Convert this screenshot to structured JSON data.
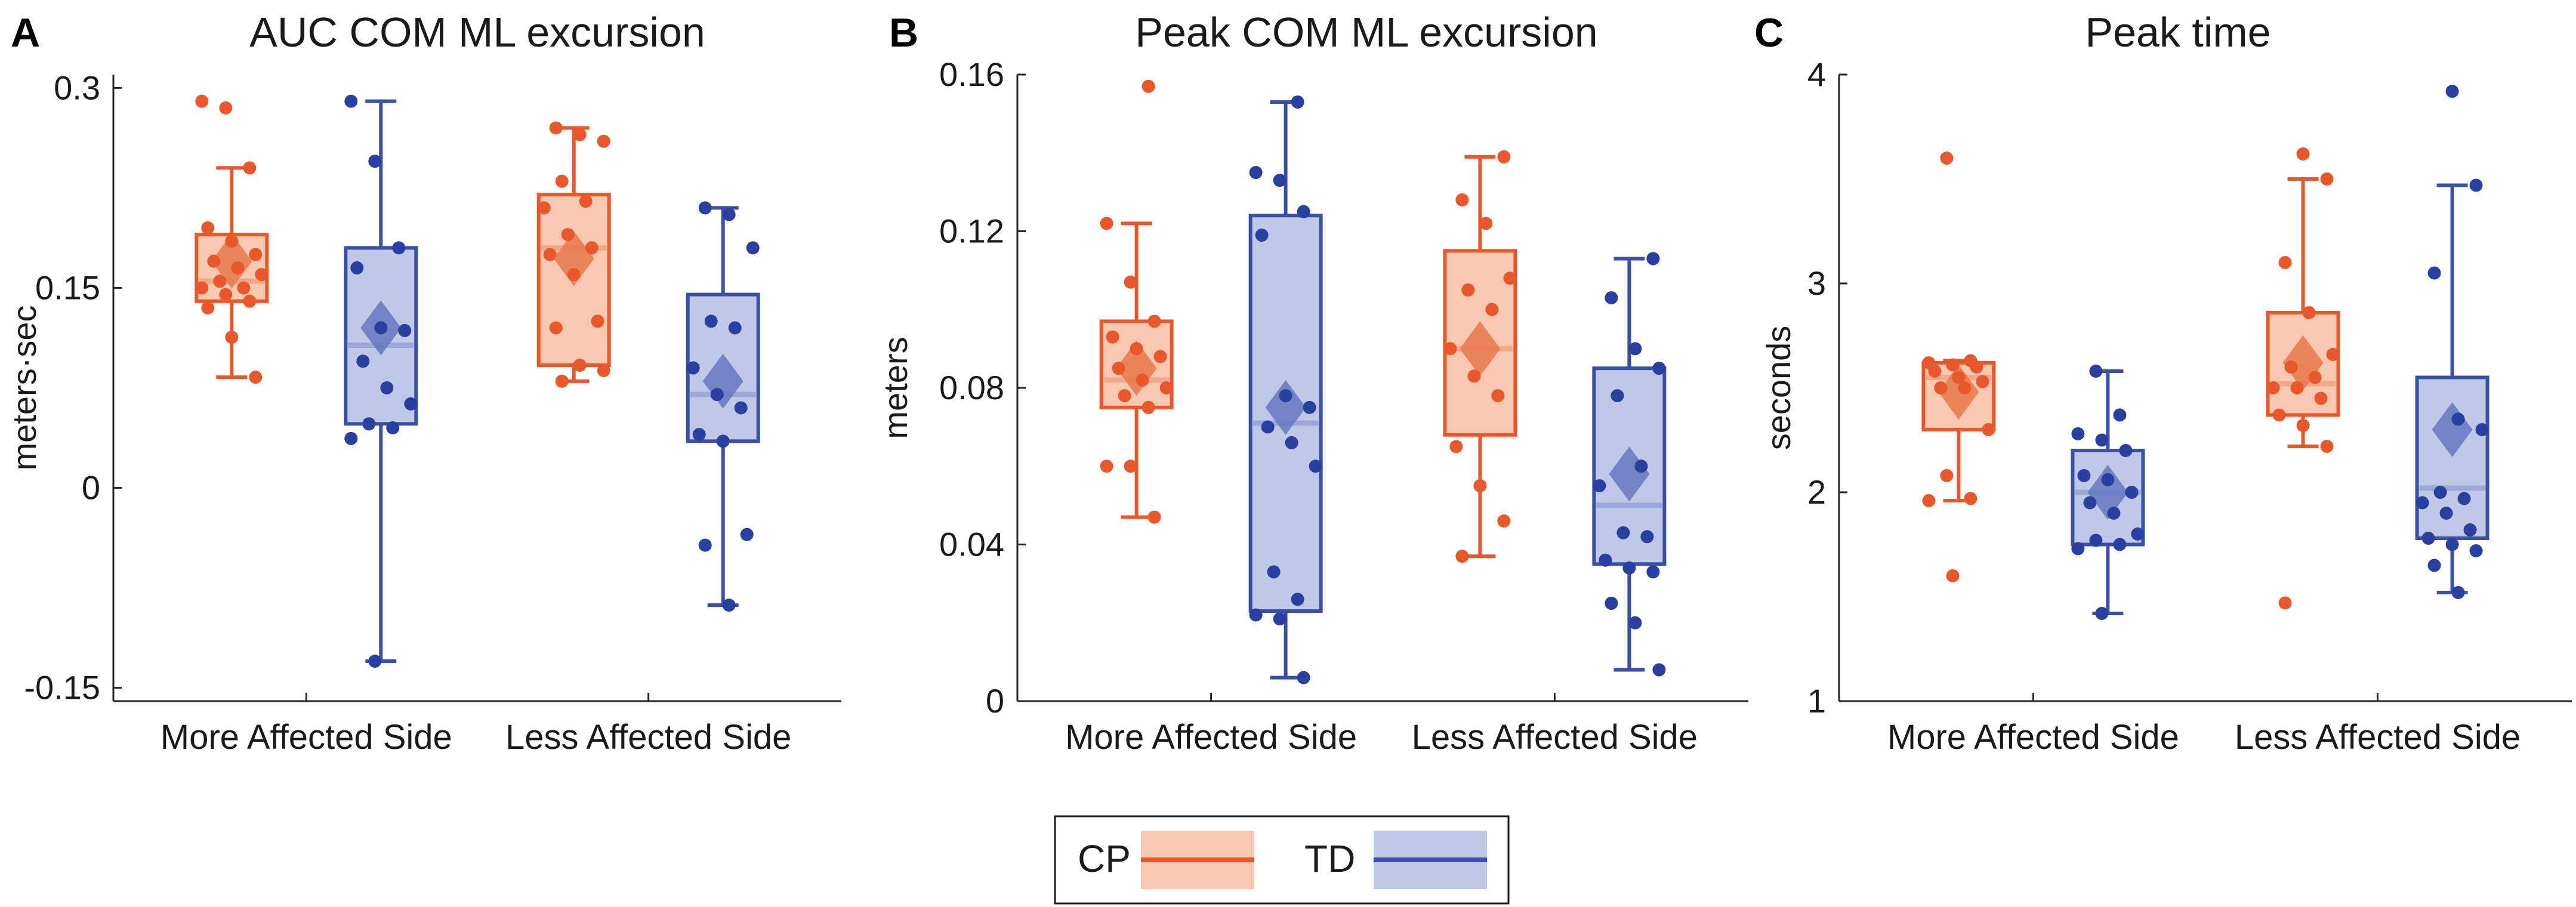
{
  "colors": {
    "cp_line": "#e8582a",
    "cp_fill": "#f8c8b0",
    "cp_dot": "#e8582a",
    "td_line": "#3a4fa8",
    "td_fill": "#c0c8e8",
    "td_dot": "#2a40a0",
    "cp_median": "#f2a98a",
    "td_median": "#9aa8d8",
    "cp_mean": "#e8784a",
    "td_mean": "#6478c0"
  },
  "legend": {
    "items": [
      {
        "label": "CP",
        "group": "cp"
      },
      {
        "label": "TD",
        "group": "td"
      }
    ]
  },
  "chart_data": [
    {
      "panel_letter": "A",
      "type": "boxplot",
      "title": "AUC COM ML excursion",
      "ylabel": "meters·sec",
      "ylim": [
        -0.16,
        0.31
      ],
      "yticks": [
        {
          "value": -0.15,
          "label": "-0.15"
        },
        {
          "value": 0,
          "label": "0"
        },
        {
          "value": 0.15,
          "label": "0.15"
        },
        {
          "value": 0.3,
          "label": "0.3"
        }
      ],
      "categories": [
        "More Affected Side",
        "Less Affected Side"
      ],
      "groups": [
        {
          "name": "CP",
          "key": "cp",
          "boxes": [
            {
              "q1": 0.14,
              "median": 0.155,
              "q3": 0.19,
              "whisker_low": 0.083,
              "whisker_high": 0.24,
              "mean": 0.17,
              "points": [
                0.29,
                0.285,
                0.24,
                0.195,
                0.185,
                0.175,
                0.17,
                0.165,
                0.16,
                0.155,
                0.15,
                0.15,
                0.145,
                0.14,
                0.135,
                0.113,
                0.083
              ]
            },
            {
              "q1": 0.092,
              "median": 0.18,
              "q3": 0.22,
              "whisker_low": 0.08,
              "whisker_high": 0.27,
              "mean": 0.172,
              "points": [
                0.27,
                0.265,
                0.26,
                0.23,
                0.215,
                0.21,
                0.19,
                0.18,
                0.175,
                0.16,
                0.125,
                0.12,
                0.092,
                0.088,
                0.08
              ]
            }
          ]
        },
        {
          "name": "TD",
          "key": "td",
          "boxes": [
            {
              "q1": 0.048,
              "median": 0.107,
              "q3": 0.18,
              "whisker_low": -0.13,
              "whisker_high": 0.29,
              "mean": 0.12,
              "points": [
                0.29,
                0.245,
                0.18,
                0.165,
                0.12,
                0.118,
                0.095,
                0.075,
                0.063,
                0.048,
                0.045,
                0.037,
                -0.13
              ]
            },
            {
              "q1": 0.035,
              "median": 0.07,
              "q3": 0.145,
              "whisker_low": -0.088,
              "whisker_high": 0.21,
              "mean": 0.08,
              "points": [
                0.21,
                0.205,
                0.18,
                0.125,
                0.12,
                0.09,
                0.07,
                0.06,
                0.04,
                0.035,
                -0.035,
                -0.043,
                -0.088
              ]
            }
          ]
        }
      ]
    },
    {
      "panel_letter": "B",
      "type": "boxplot",
      "title": "Peak COM ML excursion",
      "ylabel": "meters",
      "ylim": [
        0,
        0.16
      ],
      "yticks": [
        {
          "value": 0,
          "label": "0"
        },
        {
          "value": 0.04,
          "label": "0.04"
        },
        {
          "value": 0.08,
          "label": "0.08"
        },
        {
          "value": 0.12,
          "label": "0.12"
        },
        {
          "value": 0.16,
          "label": "0.16"
        }
      ],
      "categories": [
        "More Affected Side",
        "Less Affected Side"
      ],
      "groups": [
        {
          "name": "CP",
          "key": "cp",
          "boxes": [
            {
              "q1": 0.075,
              "median": 0.082,
              "q3": 0.097,
              "whisker_low": 0.047,
              "whisker_high": 0.122,
              "mean": 0.085,
              "points": [
                0.157,
                0.122,
                0.107,
                0.097,
                0.093,
                0.09,
                0.088,
                0.085,
                0.082,
                0.08,
                0.078,
                0.075,
                0.06,
                0.06,
                0.047
              ]
            },
            {
              "q1": 0.068,
              "median": 0.09,
              "q3": 0.115,
              "whisker_low": 0.037,
              "whisker_high": 0.139,
              "mean": 0.09,
              "points": [
                0.139,
                0.128,
                0.122,
                0.108,
                0.105,
                0.1,
                0.09,
                0.083,
                0.078,
                0.065,
                0.055,
                0.046,
                0.037
              ]
            }
          ]
        },
        {
          "name": "TD",
          "key": "td",
          "boxes": [
            {
              "q1": 0.023,
              "median": 0.071,
              "q3": 0.124,
              "whisker_low": 0.006,
              "whisker_high": 0.153,
              "mean": 0.075,
              "points": [
                0.153,
                0.135,
                0.133,
                0.125,
                0.119,
                0.078,
                0.075,
                0.07,
                0.066,
                0.06,
                0.033,
                0.026,
                0.022,
                0.021,
                0.006
              ]
            },
            {
              "q1": 0.035,
              "median": 0.05,
              "q3": 0.085,
              "whisker_low": 0.008,
              "whisker_high": 0.113,
              "mean": 0.058,
              "points": [
                0.113,
                0.103,
                0.09,
                0.085,
                0.078,
                0.06,
                0.055,
                0.043,
                0.042,
                0.036,
                0.034,
                0.033,
                0.025,
                0.02,
                0.008
              ]
            }
          ]
        }
      ]
    },
    {
      "panel_letter": "C",
      "type": "boxplot",
      "title": "Peak time",
      "ylabel": "seconds",
      "ylim": [
        1,
        4
      ],
      "yticks": [
        {
          "value": 1,
          "label": "1"
        },
        {
          "value": 2,
          "label": "2"
        },
        {
          "value": 3,
          "label": "3"
        },
        {
          "value": 4,
          "label": "4"
        }
      ],
      "categories": [
        "More Affected Side",
        "Less Affected Side"
      ],
      "groups": [
        {
          "name": "CP",
          "key": "cp",
          "boxes": [
            {
              "q1": 2.3,
              "median": 2.55,
              "q3": 2.62,
              "whisker_low": 1.96,
              "whisker_high": 2.63,
              "mean": 2.48,
              "points": [
                3.6,
                2.63,
                2.62,
                2.61,
                2.6,
                2.58,
                2.55,
                2.53,
                2.5,
                2.5,
                2.3,
                2.08,
                1.97,
                1.96,
                1.6
              ]
            },
            {
              "q1": 2.37,
              "median": 2.52,
              "q3": 2.86,
              "whisker_low": 2.22,
              "whisker_high": 3.5,
              "mean": 2.62,
              "points": [
                3.62,
                3.5,
                3.1,
                2.86,
                2.66,
                2.6,
                2.55,
                2.5,
                2.5,
                2.45,
                2.37,
                2.32,
                2.22,
                1.47
              ]
            }
          ]
        },
        {
          "name": "TD",
          "key": "td",
          "boxes": [
            {
              "q1": 1.75,
              "median": 2.0,
              "q3": 2.2,
              "whisker_low": 1.42,
              "whisker_high": 2.58,
              "mean": 2.0,
              "points": [
                2.58,
                2.37,
                2.28,
                2.25,
                2.2,
                2.08,
                2.06,
                2.0,
                1.95,
                1.9,
                1.8,
                1.77,
                1.75,
                1.73,
                1.42
              ]
            },
            {
              "q1": 1.78,
              "median": 2.02,
              "q3": 2.55,
              "whisker_low": 1.52,
              "whisker_high": 3.47,
              "mean": 2.3,
              "points": [
                3.92,
                3.47,
                3.05,
                2.35,
                2.3,
                2.0,
                1.97,
                1.95,
                1.9,
                1.82,
                1.78,
                1.75,
                1.72,
                1.65,
                1.52
              ]
            }
          ]
        }
      ]
    }
  ]
}
